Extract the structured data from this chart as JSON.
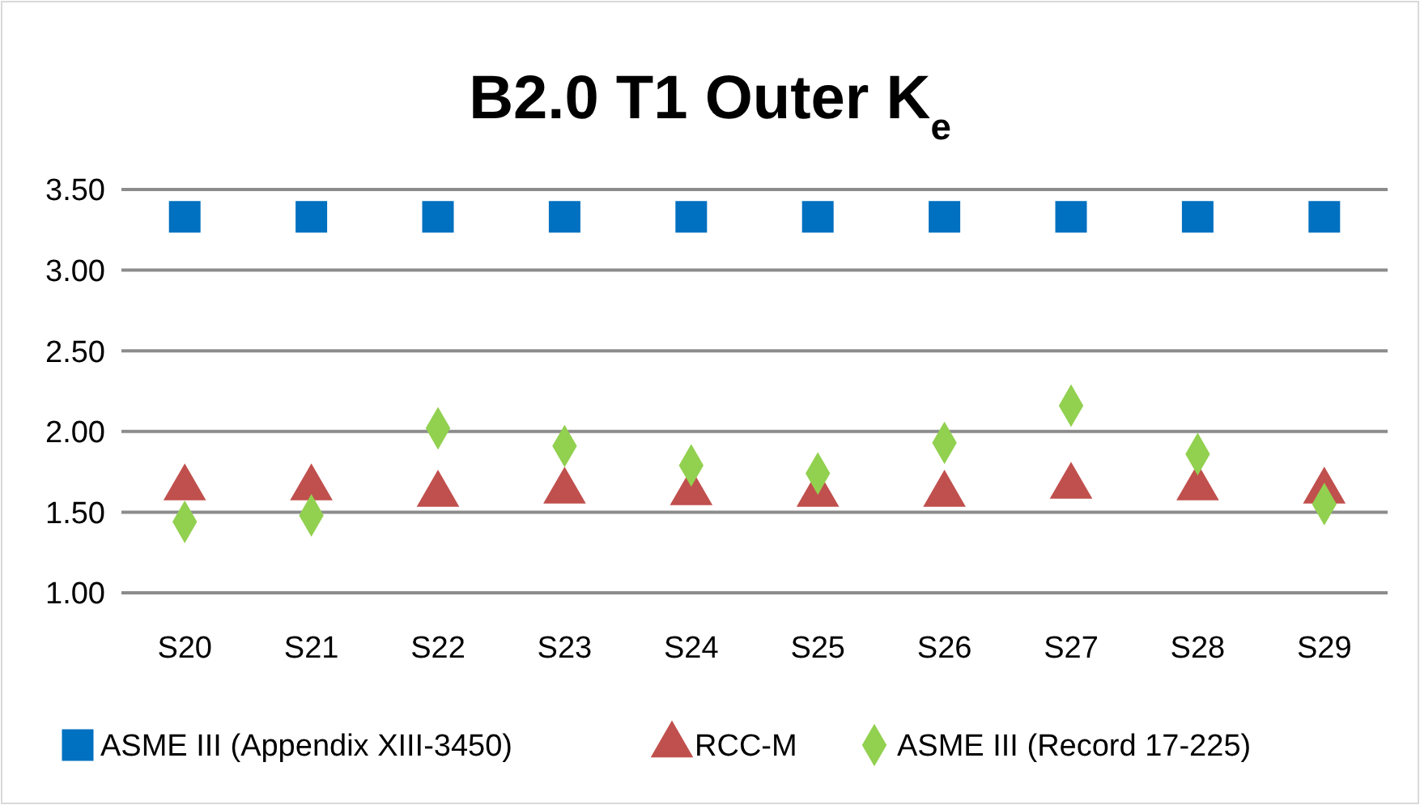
{
  "chart_data": {
    "type": "scatter",
    "title": "B2.0 T1 Outer K$_{e}$",
    "categories": [
      "S20",
      "S21",
      "S22",
      "S23",
      "S24",
      "S25",
      "S26",
      "S27",
      "S28",
      "S29"
    ],
    "series": [
      {
        "name": "ASME III (Appendix XIII-3450)",
        "color": "#0070c0",
        "marker": "square",
        "values": [
          3.33,
          3.33,
          3.33,
          3.33,
          3.33,
          3.33,
          3.33,
          3.33,
          3.33,
          3.33
        ]
      },
      {
        "name": "RCC-M",
        "color": "#c0504d",
        "marker": "triangle",
        "values": [
          1.68,
          1.68,
          1.64,
          1.66,
          1.65,
          1.64,
          1.64,
          1.69,
          1.68,
          1.66
        ]
      },
      {
        "name": "ASME III (Record 17-225)",
        "color": "#92d050",
        "marker": "diamond",
        "values": [
          1.44,
          1.48,
          2.02,
          1.91,
          1.79,
          1.74,
          1.93,
          2.16,
          1.86,
          1.55
        ]
      }
    ],
    "ylim": [
      1,
      3.5
    ],
    "yticks": [
      {
        "value": 1,
        "label": "1.00"
      },
      {
        "value": 1.5,
        "label": "1.50"
      },
      {
        "value": 2,
        "label": "2.00"
      },
      {
        "value": 2.5,
        "label": "2.50"
      },
      {
        "value": 3,
        "label": "3.00"
      },
      {
        "value": 3.5,
        "label": "3.50"
      }
    ],
    "grid": "y",
    "legend": "bottom"
  }
}
